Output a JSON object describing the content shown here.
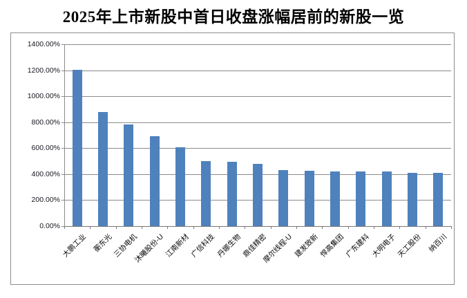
{
  "title": "2025年上市新股中首日收盘涨幅居前的新股一览",
  "chart_data": {
    "type": "bar",
    "title": "2025年上市新股中首日收盘涨幅居前的新股一览",
    "categories": [
      "大鹏工业",
      "蘅东光",
      "三协电机",
      "沐曦股份-U",
      "江南新材",
      "广信科技",
      "丹娜生物",
      "鼎佳精密",
      "摩尔线程-U",
      "建发致新",
      "悍高集团",
      "广东建科",
      "大明电子",
      "天工股份",
      "纳百川"
    ],
    "series": [
      {
        "name": "首日收盘涨幅",
        "values": [
          1205,
          877,
          782,
          694,
          607,
          503,
          497,
          478,
          430,
          425,
          422,
          421,
          419,
          412,
          410
        ]
      }
    ],
    "values_unit": "percent",
    "xlabel": "",
    "ylabel": "",
    "ylim": [
      0,
      1400
    ],
    "ytick_step": 200,
    "ytick_format": "{v}.00%",
    "ytick_labels": [
      "0.00%",
      "200.00%",
      "400.00%",
      "600.00%",
      "800.00%",
      "1000.00%",
      "1200.00%",
      "1400.00%"
    ],
    "grid": true,
    "legend_position": "none",
    "bar_color": "#4F81BD",
    "gridline_color": "#8a8a8a",
    "frame_border_color": "#8c8c8c",
    "background_color": "#ffffff"
  }
}
